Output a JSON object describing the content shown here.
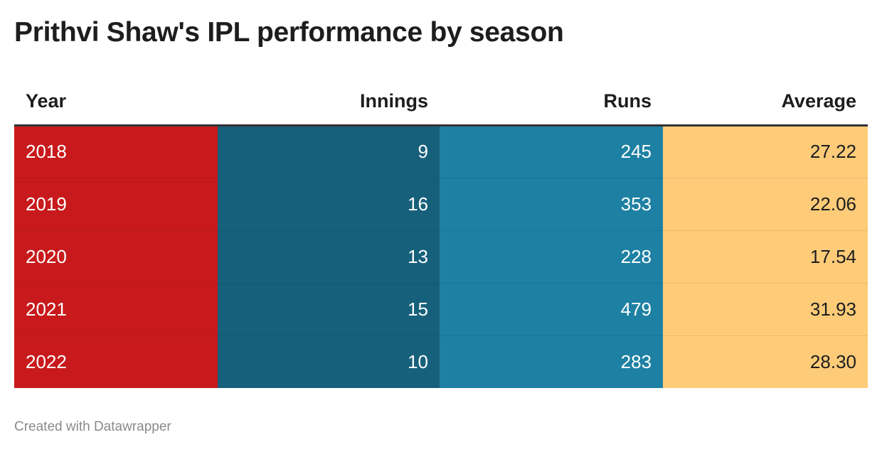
{
  "title": "Prithvi Shaw's IPL performance by season",
  "credit": "Created with Datawrapper",
  "colors": {
    "year": "#c81a1c",
    "innings": "#17607b",
    "runs": "#1e81a3",
    "average": "#fecb79"
  },
  "chart_data": {
    "type": "table",
    "columns": [
      "Year",
      "Innings",
      "Runs",
      "Average"
    ],
    "rows": [
      [
        "2018",
        "9",
        "245",
        "27.22"
      ],
      [
        "2019",
        "16",
        "353",
        "22.06"
      ],
      [
        "2020",
        "13",
        "228",
        "17.54"
      ],
      [
        "2021",
        "15",
        "479",
        "31.93"
      ],
      [
        "2022",
        "10",
        "283",
        "28.30"
      ]
    ]
  }
}
